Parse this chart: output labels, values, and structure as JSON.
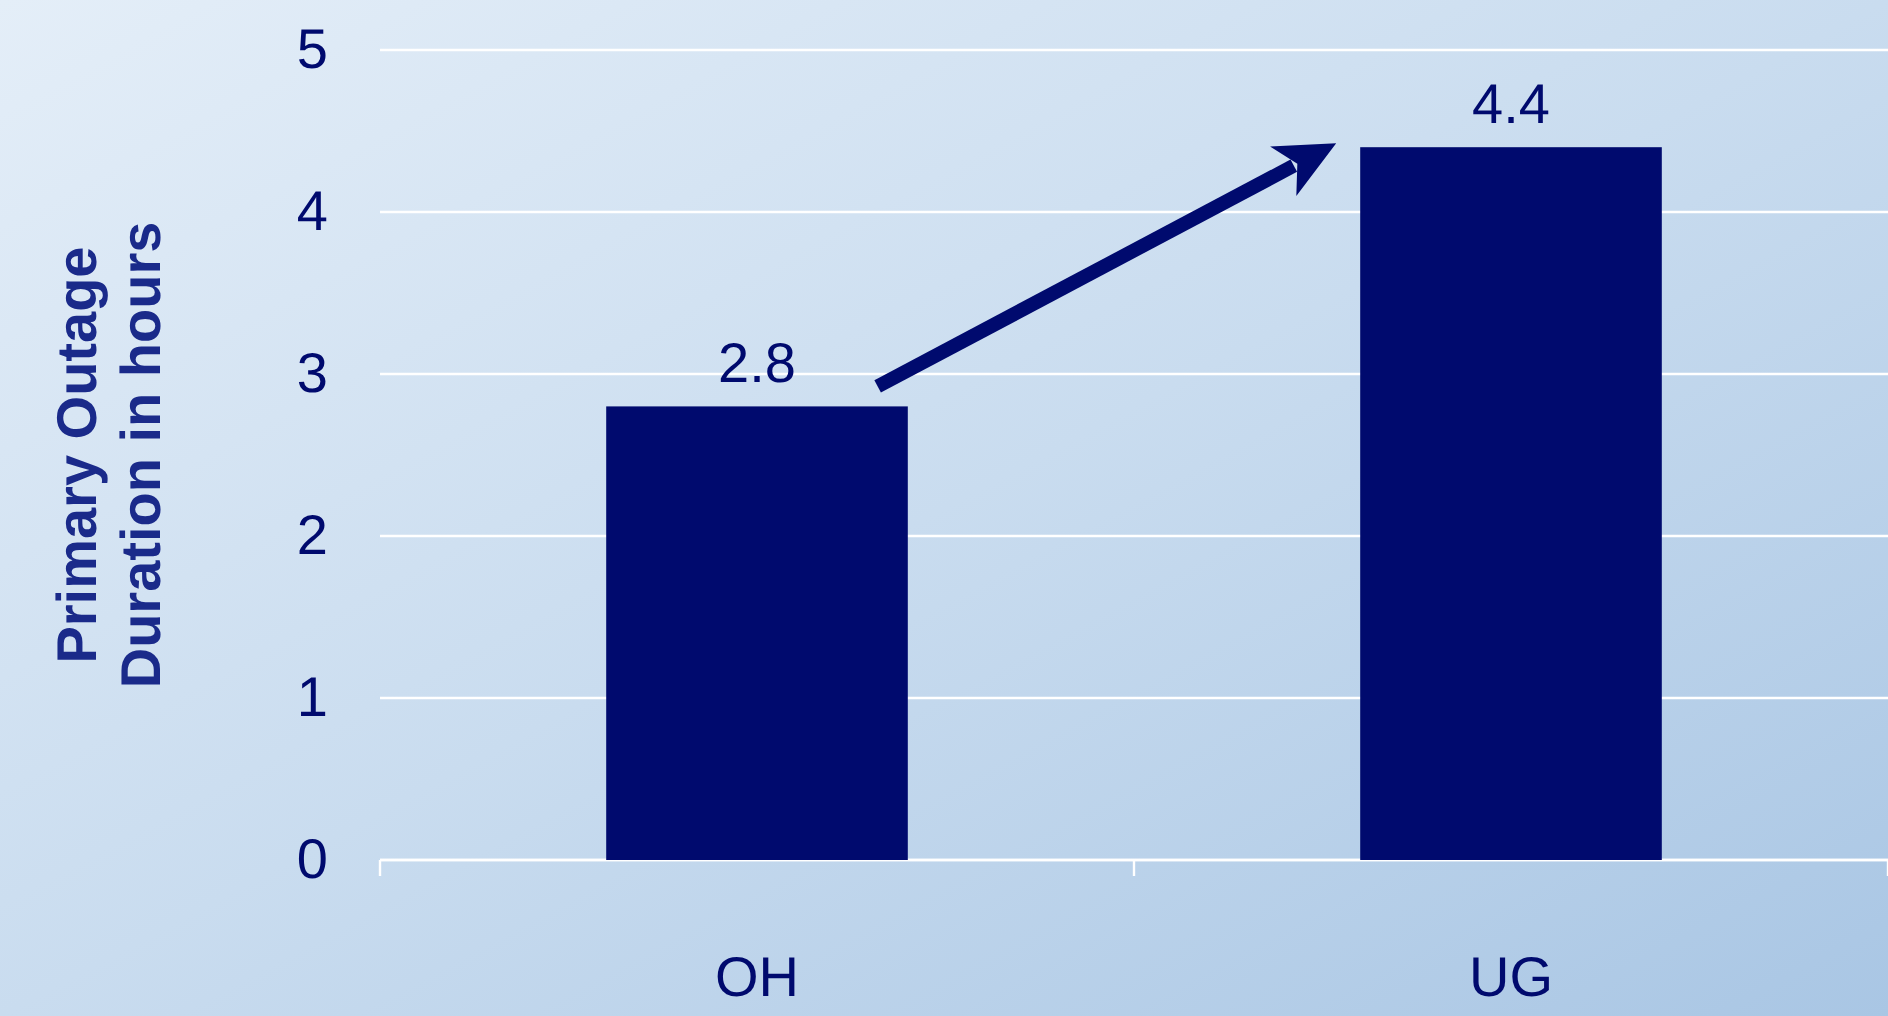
{
  "chart_data": {
    "type": "bar",
    "ylabel": "Primary Outage Duration in hours",
    "categories": [
      "OH",
      "UG"
    ],
    "values": [
      2.8,
      4.4
    ],
    "color": "#000a6e",
    "ylim": [
      0,
      5
    ],
    "yticks": [
      0,
      1,
      2,
      3,
      4,
      5
    ],
    "grid": "y",
    "data_labels": true
  }
}
